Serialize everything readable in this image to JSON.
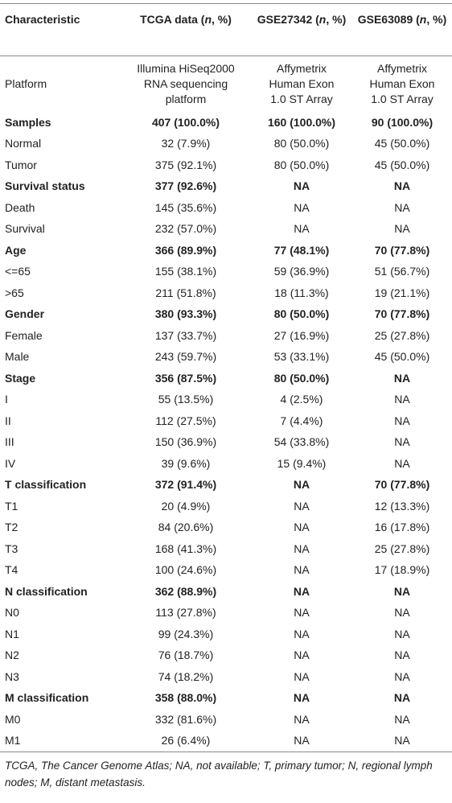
{
  "header": [
    [
      "Characteristic"
    ],
    [
      "TCGA data (",
      "n",
      ", %)"
    ],
    [
      "GSE27342 (",
      "n",
      ", %)"
    ],
    [
      "GSE63089 (",
      "n",
      ", %)"
    ]
  ],
  "rows": [
    {
      "cells": [
        "Platform",
        [
          "Illumina HiSeq2000",
          "RNA sequencing",
          "platform"
        ],
        [
          "Affymetrix",
          "Human Exon",
          "1.0 ST Array"
        ],
        [
          "Affymetrix",
          "Human Exon",
          "1.0 ST Array"
        ]
      ],
      "bold": false
    },
    {
      "cells": [
        "Samples",
        "407 (100.0%)",
        "160 (100.0%)",
        "90 (100.0%)"
      ],
      "bold": true
    },
    {
      "cells": [
        "Normal",
        "32 (7.9%)",
        "80 (50.0%)",
        "45 (50.0%)"
      ],
      "bold": false
    },
    {
      "cells": [
        "Tumor",
        "375 (92.1%)",
        "80 (50.0%)",
        "45 (50.0%)"
      ],
      "bold": false
    },
    {
      "cells": [
        "Survival status",
        "377 (92.6%)",
        "NA",
        "NA"
      ],
      "bold": true
    },
    {
      "cells": [
        "Death",
        "145 (35.6%)",
        "NA",
        "NA"
      ],
      "bold": false
    },
    {
      "cells": [
        "Survival",
        "232 (57.0%)",
        "NA",
        "NA"
      ],
      "bold": false
    },
    {
      "cells": [
        "Age",
        "366 (89.9%)",
        "77 (48.1%)",
        "70 (77.8%)"
      ],
      "bold": true
    },
    {
      "cells": [
        "<=65",
        "155 (38.1%)",
        "59 (36.9%)",
        "51 (56.7%)"
      ],
      "bold": false
    },
    {
      "cells": [
        ">65",
        "211 (51.8%)",
        "18 (11.3%)",
        "19 (21.1%)"
      ],
      "bold": false
    },
    {
      "cells": [
        "Gender",
        "380 (93.3%)",
        "80 (50.0%)",
        "70 (77.8%)"
      ],
      "bold": true
    },
    {
      "cells": [
        "Female",
        "137 (33.7%)",
        "27 (16.9%)",
        "25 (27.8%)"
      ],
      "bold": false
    },
    {
      "cells": [
        "Male",
        "243 (59.7%)",
        "53 (33.1%)",
        "45 (50.0%)"
      ],
      "bold": false
    },
    {
      "cells": [
        "Stage",
        "356 (87.5%)",
        "80 (50.0%)",
        "NA"
      ],
      "bold": true
    },
    {
      "cells": [
        "I",
        "55 (13.5%)",
        "4 (2.5%)",
        "NA"
      ],
      "bold": false
    },
    {
      "cells": [
        "II",
        "112 (27.5%)",
        "7 (4.4%)",
        "NA"
      ],
      "bold": false
    },
    {
      "cells": [
        "III",
        "150 (36.9%)",
        "54 (33.8%)",
        "NA"
      ],
      "bold": false
    },
    {
      "cells": [
        "IV",
        "39 (9.6%)",
        "15 (9.4%)",
        "NA"
      ],
      "bold": false
    },
    {
      "cells": [
        "T classification",
        "372 (91.4%)",
        "NA",
        "70 (77.8%)"
      ],
      "bold": true
    },
    {
      "cells": [
        "T1",
        "20 (4.9%)",
        "NA",
        "12 (13.3%)"
      ],
      "bold": false
    },
    {
      "cells": [
        "T2",
        "84 (20.6%)",
        "NA",
        "16 (17.8%)"
      ],
      "bold": false
    },
    {
      "cells": [
        "T3",
        "168 (41.3%)",
        "NA",
        "25 (27.8%)"
      ],
      "bold": false
    },
    {
      "cells": [
        "T4",
        "100 (24.6%)",
        "NA",
        "17 (18.9%)"
      ],
      "bold": false
    },
    {
      "cells": [
        "N classification",
        "362 (88.9%)",
        "NA",
        "NA"
      ],
      "bold": true
    },
    {
      "cells": [
        "N0",
        "113 (27.8%)",
        "NA",
        "NA"
      ],
      "bold": false
    },
    {
      "cells": [
        "N1",
        "99 (24.3%)",
        "NA",
        "NA"
      ],
      "bold": false
    },
    {
      "cells": [
        "N2",
        "76 (18.7%)",
        "NA",
        "NA"
      ],
      "bold": false
    },
    {
      "cells": [
        "N3",
        "74 (18.2%)",
        "NA",
        "NA"
      ],
      "bold": false
    },
    {
      "cells": [
        "M classification",
        "358 (88.0%)",
        "NA",
        "NA"
      ],
      "bold": true
    },
    {
      "cells": [
        "M0",
        "332 (81.6%)",
        "NA",
        "NA"
      ],
      "bold": false
    },
    {
      "cells": [
        "M1",
        "26 (6.4%)",
        "NA",
        "NA"
      ],
      "bold": false
    }
  ],
  "footnote": "TCGA, The Cancer Genome Atlas; NA, not available; T, primary tumor; N, regional lymph nodes; M, distant metastasis."
}
